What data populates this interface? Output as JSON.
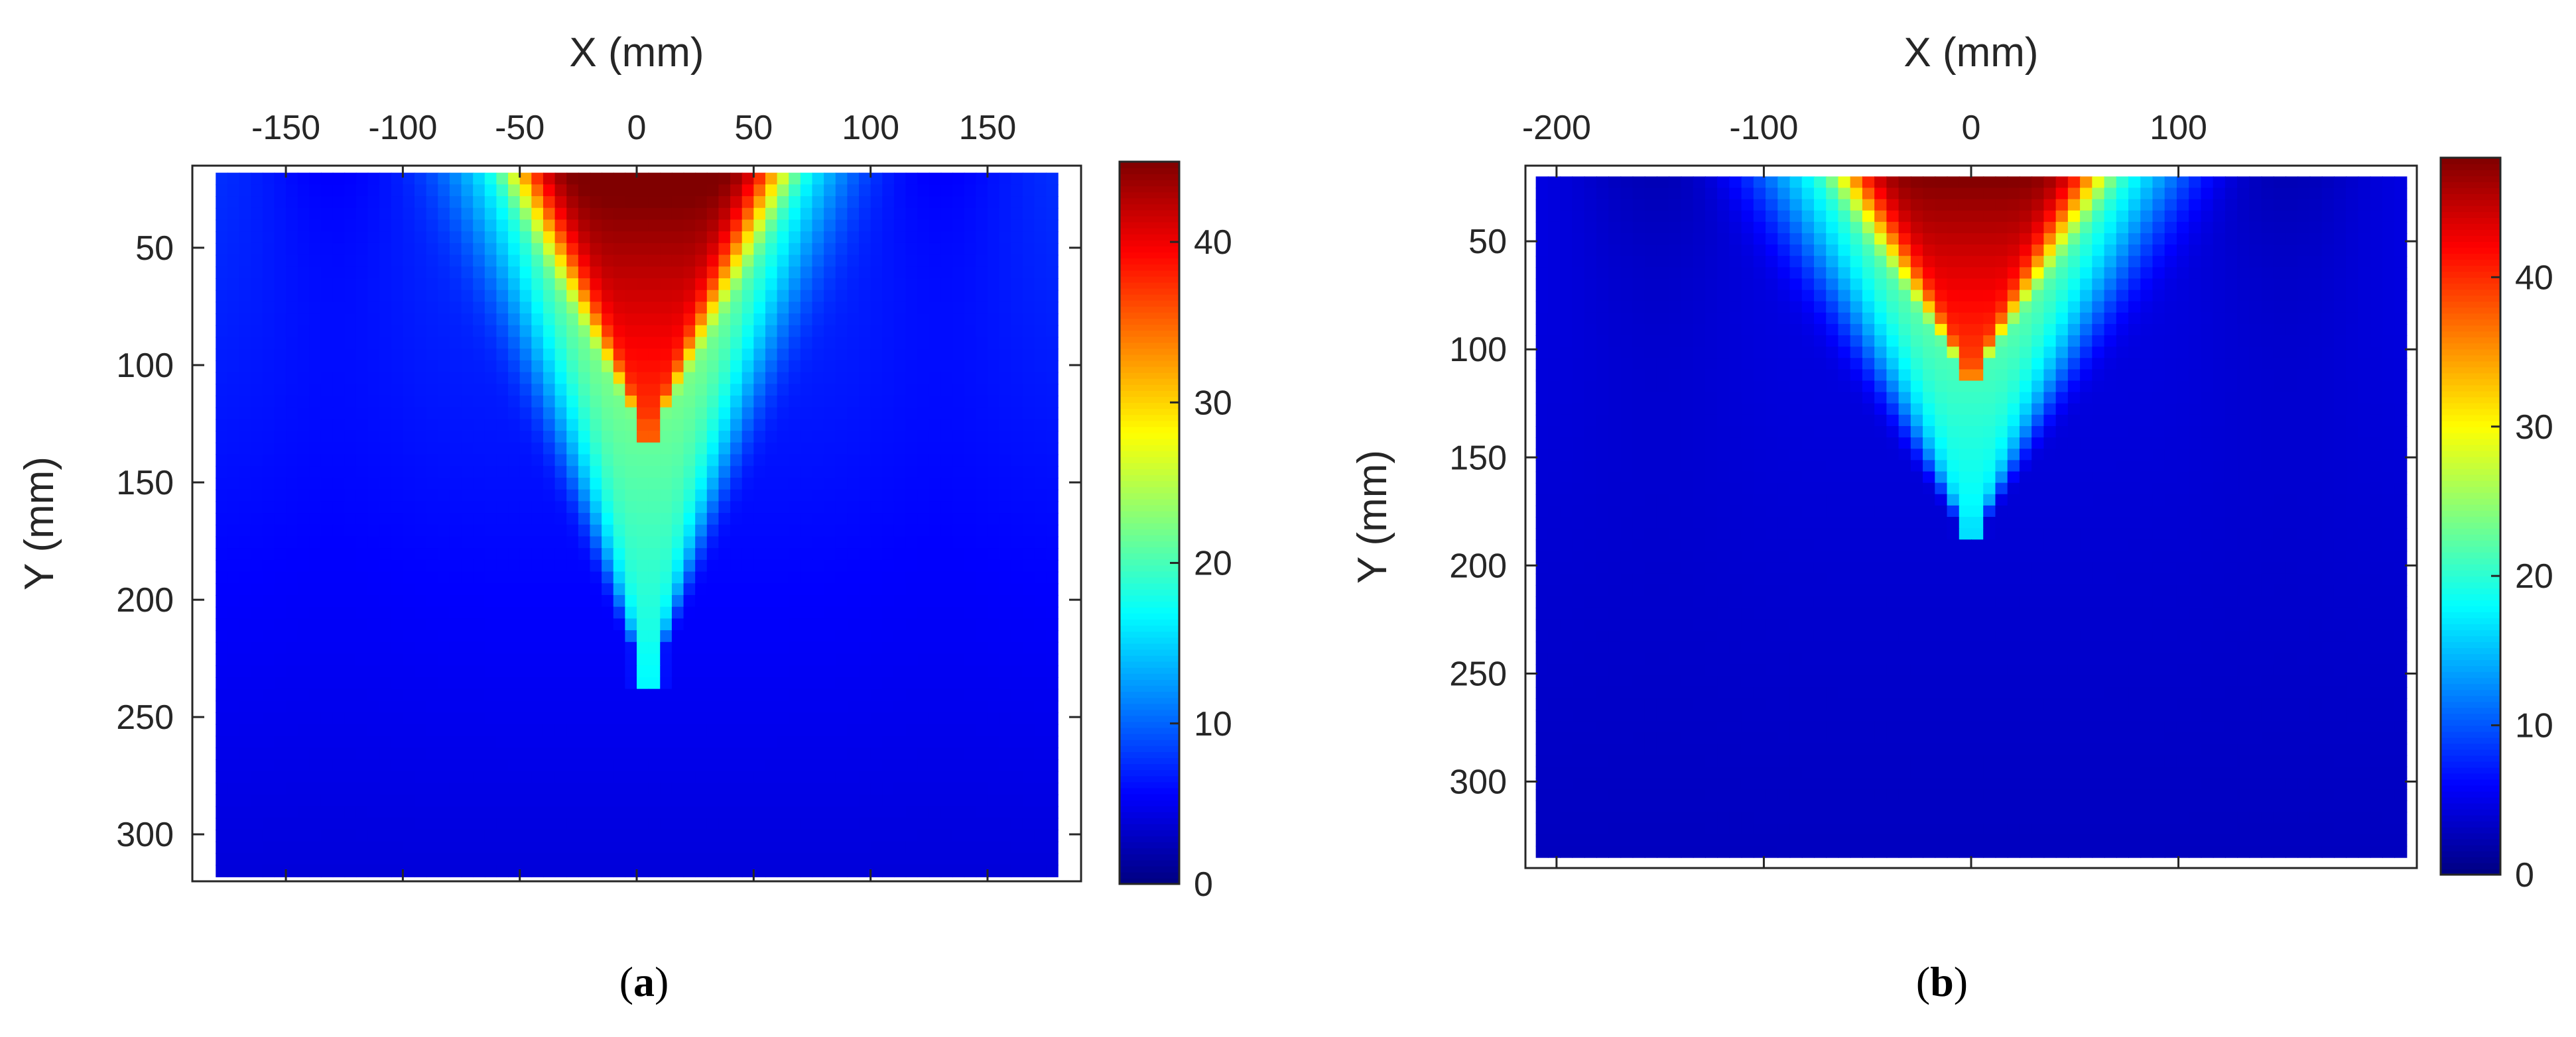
{
  "chart_data": [
    {
      "type": "heatmap",
      "panel_label": "a",
      "xlabel": "X (mm)",
      "ylabel": "Y (mm)",
      "xlim": [
        -190,
        190
      ],
      "ylim": [
        320,
        15
      ],
      "x_axis_position": "top",
      "y_reversed": true,
      "x_ticks": [
        -150,
        -100,
        -50,
        0,
        50,
        100,
        150
      ],
      "x_tick_labels": [
        "-150",
        "-100",
        "-50",
        "0",
        "50",
        "100",
        "150"
      ],
      "y_ticks": [
        50,
        100,
        150,
        200,
        250,
        300
      ],
      "y_tick_labels": [
        "50",
        "100",
        "150",
        "200",
        "250",
        "300"
      ],
      "colorbar": {
        "range": [
          0,
          45
        ],
        "ticks": [
          0,
          10,
          20,
          30,
          40
        ],
        "tick_labels": [
          "0",
          "10",
          "20",
          "30",
          "40"
        ],
        "colormap": "jet",
        "placement": "right"
      },
      "grid": false,
      "data_extent": {
        "x": [
          -180,
          180
        ],
        "y": [
          18,
          318
        ]
      },
      "field": {
        "background_top": 8,
        "background_bottom": 4,
        "plume_center_x": 5,
        "plume_center_y": 18,
        "plume_peak": 46,
        "halo_half_width_top": 75,
        "halo_depth": 220,
        "core_half_width_top": 55,
        "core_depth": 115
      }
    },
    {
      "type": "heatmap",
      "panel_label": "b",
      "xlabel": "X (mm)",
      "ylabel": "Y (mm)",
      "xlim": [
        -215,
        215
      ],
      "ylim": [
        340,
        15
      ],
      "x_axis_position": "top",
      "y_reversed": true,
      "x_ticks": [
        -200,
        -100,
        0,
        100
      ],
      "x_tick_labels": [
        "-200",
        "-100",
        "0",
        "100"
      ],
      "y_ticks": [
        50,
        100,
        150,
        200,
        250,
        300
      ],
      "y_tick_labels": [
        "50",
        "100",
        "150",
        "200",
        "250",
        "300"
      ],
      "colorbar": {
        "range": [
          0,
          48
        ],
        "ticks": [
          0,
          10,
          20,
          30,
          40
        ],
        "tick_labels": [
          "0",
          "10",
          "20",
          "30",
          "40"
        ],
        "colormap": "jet",
        "placement": "right"
      },
      "grid": false,
      "data_extent": {
        "x": [
          -210,
          210
        ],
        "y": [
          20,
          335
        ]
      },
      "field": {
        "background_top": 5,
        "background_bottom": 3,
        "plume_center_x": 0,
        "plume_center_y": 20,
        "plume_peak": 48,
        "halo_half_width_top": 95,
        "halo_depth": 170,
        "core_half_width_top": 60,
        "core_depth": 95
      }
    }
  ],
  "captions": {
    "a": {
      "open": "(",
      "letter": "a",
      "close": ")"
    },
    "b": {
      "open": "(",
      "letter": "b",
      "close": ")"
    }
  }
}
